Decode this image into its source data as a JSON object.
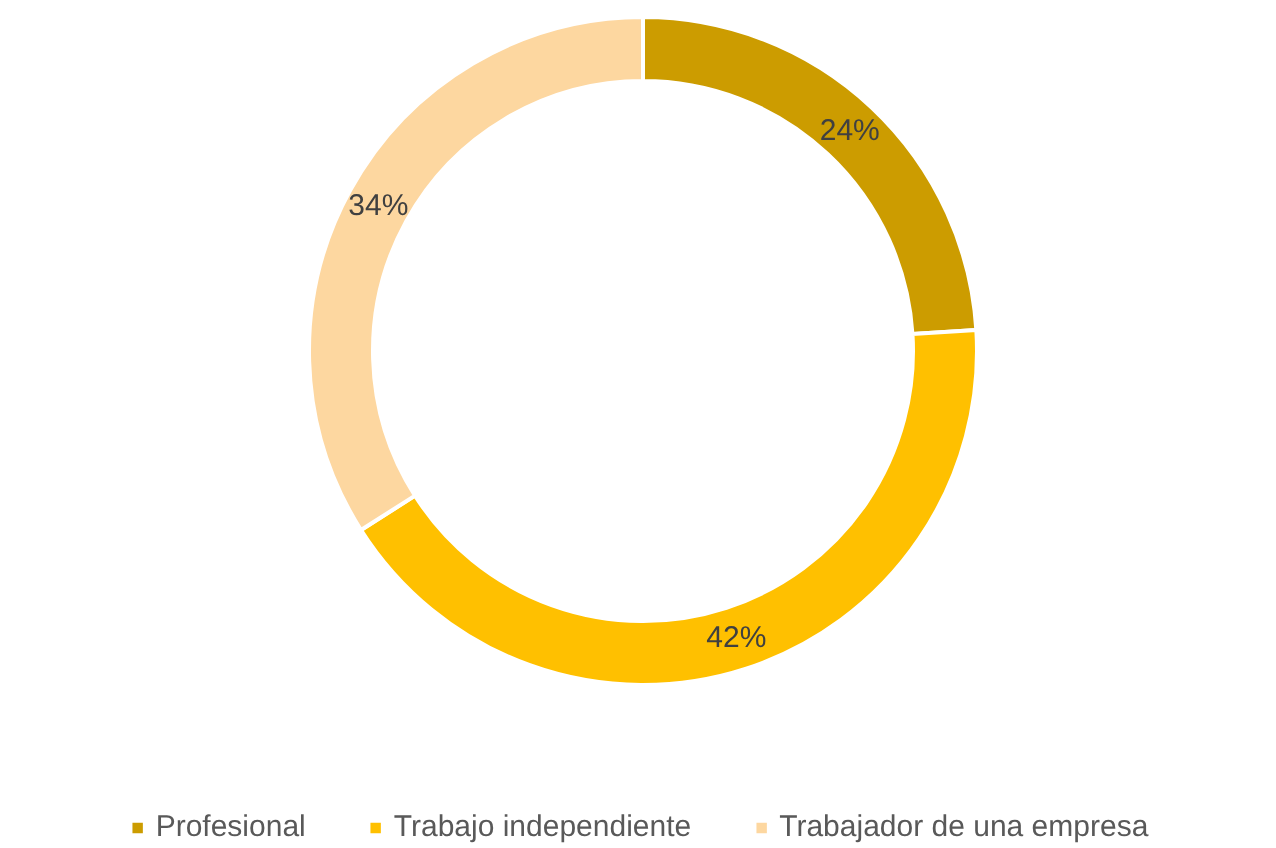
{
  "chart_data": {
    "type": "donut",
    "categories": [
      "Profesional",
      "Trabajo independiente",
      "Trabajador de una empresa"
    ],
    "values": [
      24,
      42,
      34
    ],
    "colors": [
      "#cc9c00",
      "#ffc000",
      "#fdd7a0"
    ],
    "value_labels": [
      "24%",
      "42%",
      "34%"
    ],
    "legend": "bottom"
  }
}
